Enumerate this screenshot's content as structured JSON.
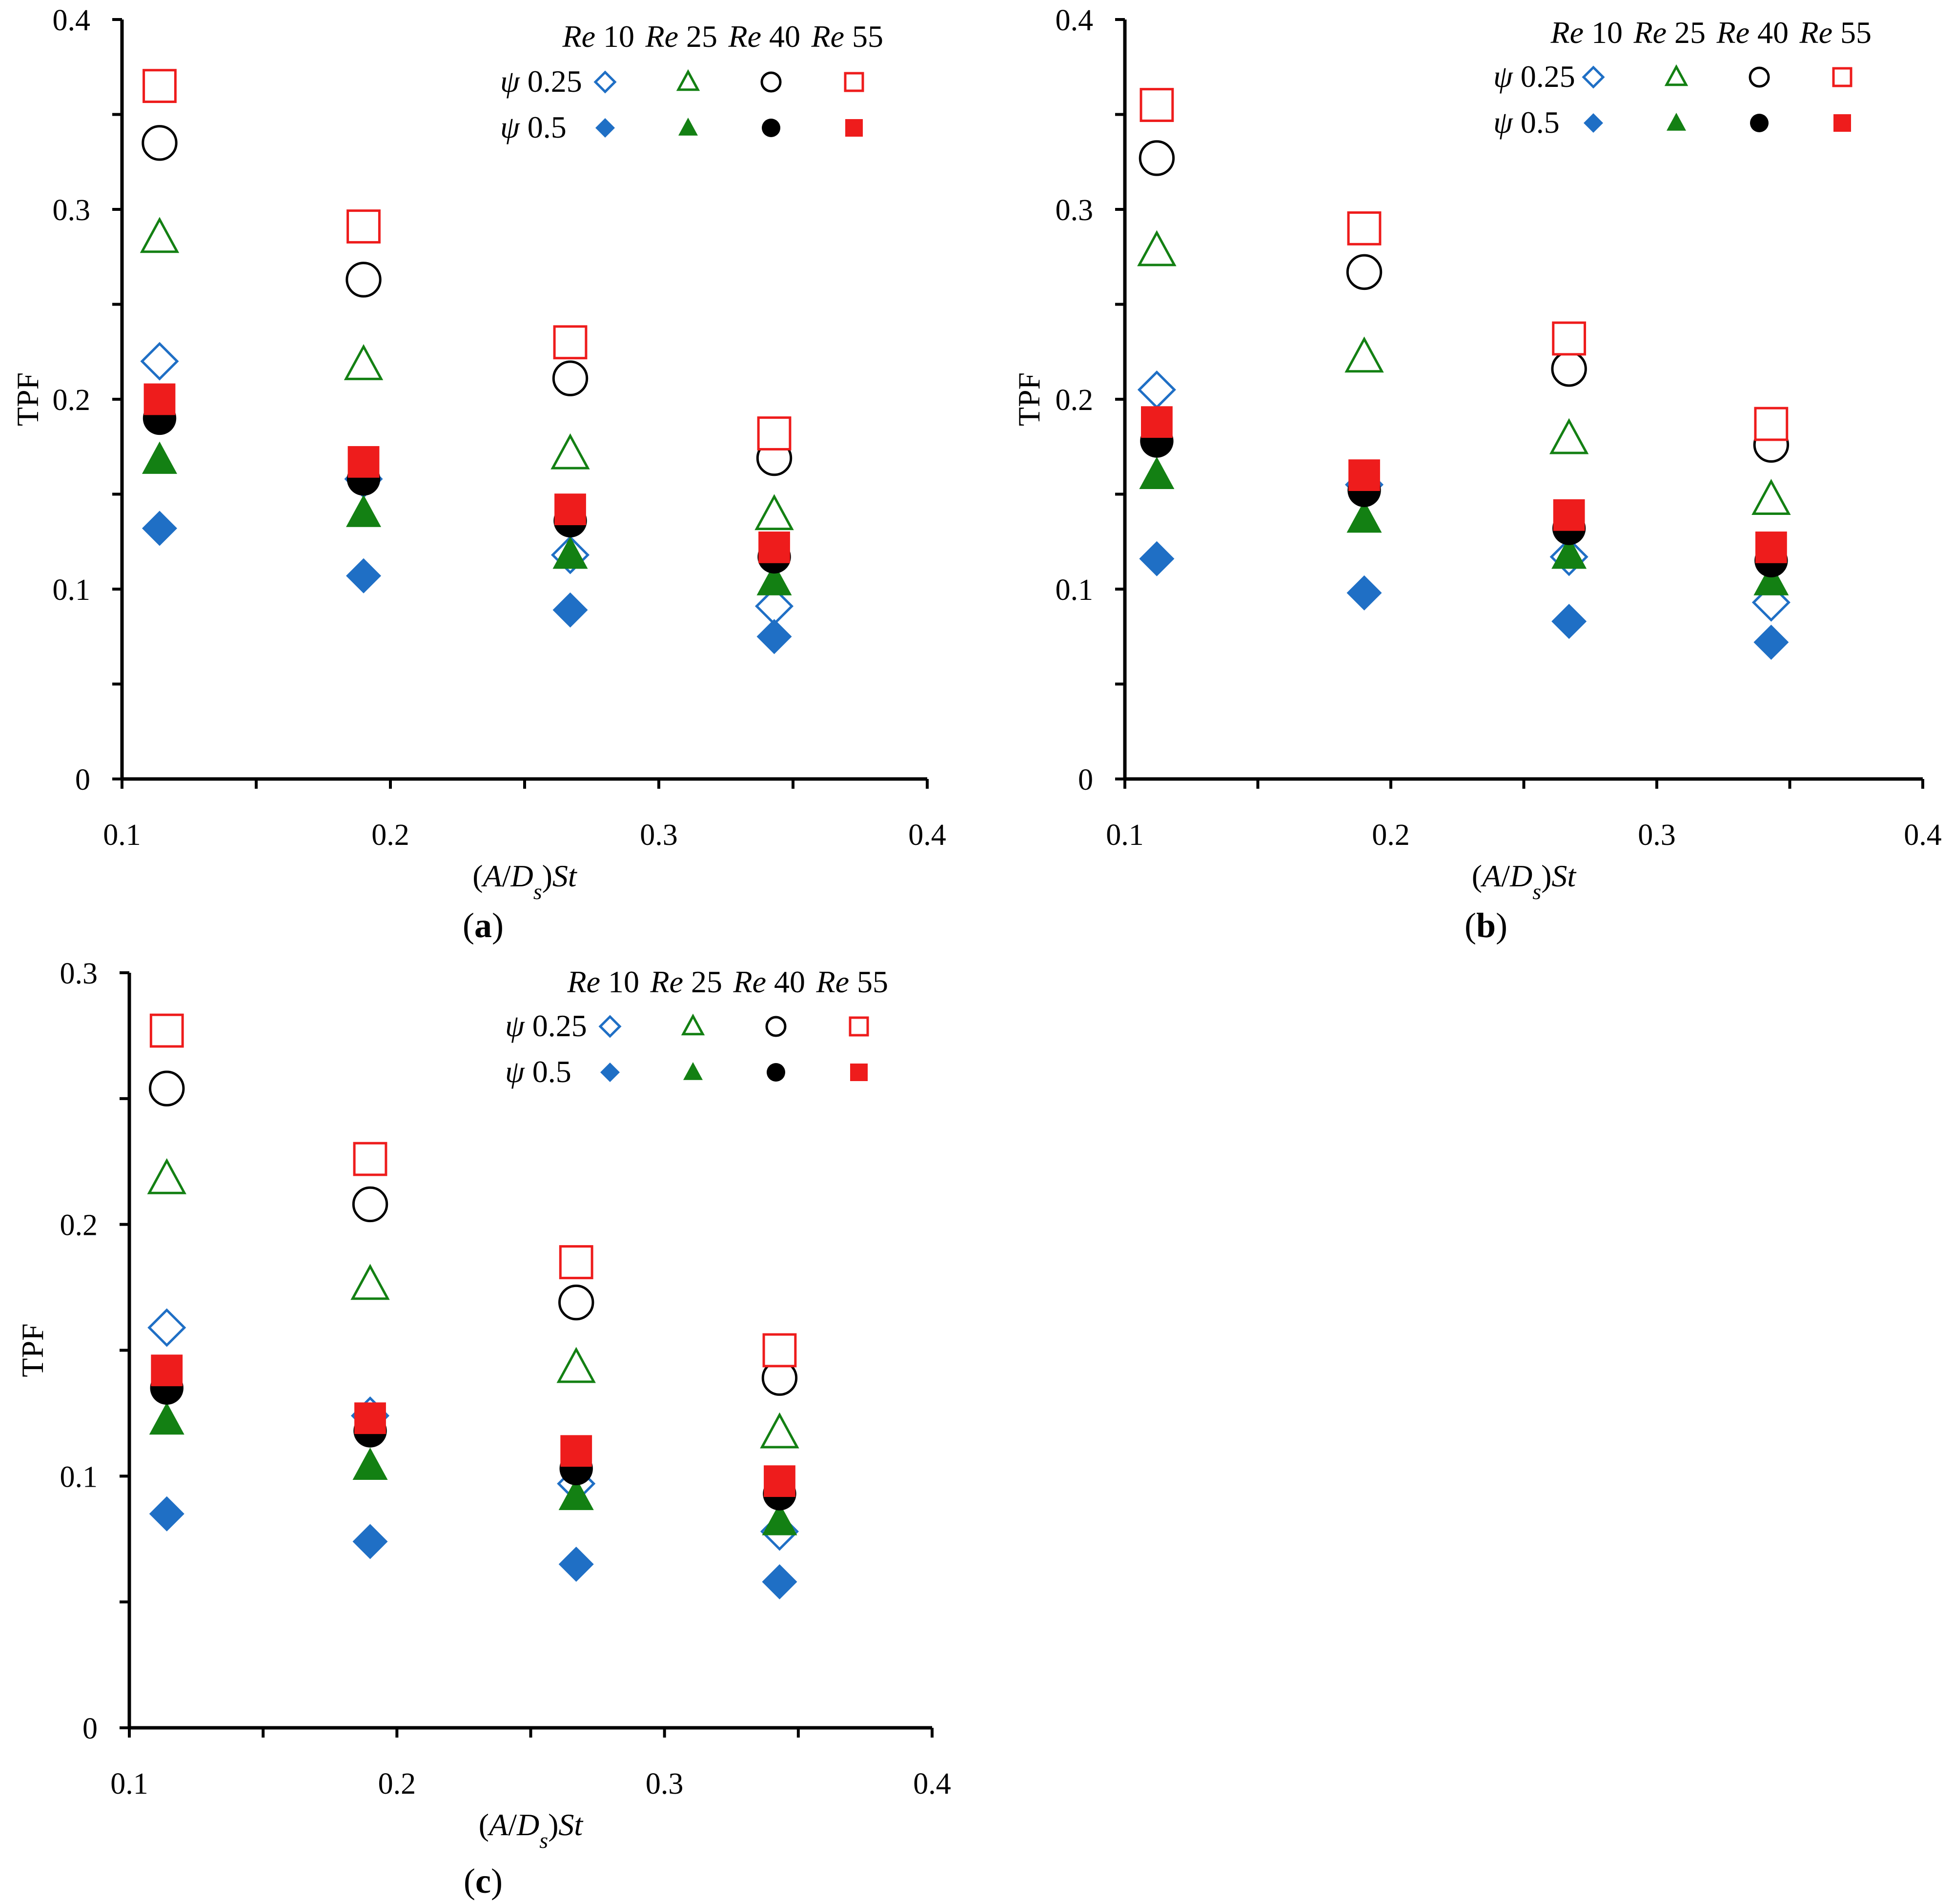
{
  "legend": {
    "re_prefix": "Re",
    "re_values": [
      "10",
      "25",
      "40",
      "55"
    ],
    "psi_symbol": "ψ",
    "psi_values": [
      "0.25",
      "0.5"
    ]
  },
  "colors": {
    "re10": "#1f6fc5",
    "re25": "#138013",
    "re40": "#000000",
    "re55": "#ee1c1c"
  },
  "chart_data": [
    {
      "type": "scatter",
      "panel_label": "a",
      "title": "",
      "xlabel": "(A/Ds)St",
      "ylabel": "TPF",
      "xlim": [
        0.1,
        0.4
      ],
      "ylim": [
        0,
        0.4
      ],
      "xticks": [
        "0.1",
        "0.2",
        "0.3",
        "0.4"
      ],
      "yticks": [
        "0",
        "0.1",
        "0.2",
        "0.3",
        "0.4"
      ],
      "grid": false,
      "legend_position": "top-right",
      "x": [
        0.114,
        0.19,
        0.267,
        0.343
      ],
      "series": [
        {
          "re": "10",
          "psi": "0.25",
          "marker": "diamond",
          "filled": false,
          "values": [
            0.22,
            0.158,
            0.118,
            0.091
          ]
        },
        {
          "re": "25",
          "psi": "0.25",
          "marker": "triangle",
          "filled": false,
          "values": [
            0.285,
            0.218,
            0.171,
            0.139
          ]
        },
        {
          "re": "40",
          "psi": "0.25",
          "marker": "circle",
          "filled": false,
          "values": [
            0.335,
            0.263,
            0.211,
            0.169
          ]
        },
        {
          "re": "55",
          "psi": "0.25",
          "marker": "square",
          "filled": false,
          "values": [
            0.365,
            0.291,
            0.23,
            0.182
          ]
        },
        {
          "re": "10",
          "psi": "0.5",
          "marker": "diamond",
          "filled": true,
          "values": [
            0.132,
            0.107,
            0.089,
            0.075
          ]
        },
        {
          "re": "25",
          "psi": "0.5",
          "marker": "triangle",
          "filled": true,
          "values": [
            0.168,
            0.14,
            0.118,
            0.104
          ]
        },
        {
          "re": "40",
          "psi": "0.5",
          "marker": "circle",
          "filled": true,
          "values": [
            0.19,
            0.158,
            0.136,
            0.117
          ]
        },
        {
          "re": "55",
          "psi": "0.5",
          "marker": "square",
          "filled": true,
          "values": [
            0.2,
            0.167,
            0.142,
            0.122
          ]
        }
      ]
    },
    {
      "type": "scatter",
      "panel_label": "b",
      "title": "",
      "xlabel": "(A/Ds)St",
      "ylabel": "TPF",
      "xlim": [
        0.1,
        0.4
      ],
      "ylim": [
        0,
        0.4
      ],
      "xticks": [
        "0.1",
        "0.2",
        "0.3",
        "0.4"
      ],
      "yticks": [
        "0",
        "0.1",
        "0.2",
        "0.3",
        "0.4"
      ],
      "grid": false,
      "legend_position": "top-right",
      "x": [
        0.112,
        0.19,
        0.267,
        0.343
      ],
      "series": [
        {
          "re": "10",
          "psi": "0.25",
          "marker": "diamond",
          "filled": false,
          "values": [
            0.205,
            0.155,
            0.117,
            0.093
          ]
        },
        {
          "re": "25",
          "psi": "0.25",
          "marker": "triangle",
          "filled": false,
          "values": [
            0.278,
            0.222,
            0.179,
            0.147
          ]
        },
        {
          "re": "40",
          "psi": "0.25",
          "marker": "circle",
          "filled": false,
          "values": [
            0.327,
            0.267,
            0.216,
            0.176
          ]
        },
        {
          "re": "55",
          "psi": "0.25",
          "marker": "square",
          "filled": false,
          "values": [
            0.355,
            0.29,
            0.232,
            0.187
          ]
        },
        {
          "re": "10",
          "psi": "0.5",
          "marker": "diamond",
          "filled": true,
          "values": [
            0.116,
            0.098,
            0.083,
            0.072
          ]
        },
        {
          "re": "25",
          "psi": "0.5",
          "marker": "triangle",
          "filled": true,
          "values": [
            0.16,
            0.137,
            0.118,
            0.104
          ]
        },
        {
          "re": "40",
          "psi": "0.5",
          "marker": "circle",
          "filled": true,
          "values": [
            0.178,
            0.152,
            0.132,
            0.115
          ]
        },
        {
          "re": "55",
          "psi": "0.5",
          "marker": "square",
          "filled": true,
          "values": [
            0.188,
            0.16,
            0.139,
            0.122
          ]
        }
      ]
    },
    {
      "type": "scatter",
      "panel_label": "c",
      "title": "",
      "xlabel": "(A/Ds)St",
      "ylabel": "TPF",
      "xlim": [
        0.1,
        0.4
      ],
      "ylim": [
        0,
        0.3
      ],
      "xticks": [
        "0.1",
        "0.2",
        "0.3",
        "0.4"
      ],
      "yticks": [
        "0",
        "0.1",
        "0.2",
        "0.3"
      ],
      "grid": false,
      "legend_position": "top-right",
      "x": [
        0.114,
        0.19,
        0.267,
        0.343
      ],
      "series": [
        {
          "re": "10",
          "psi": "0.25",
          "marker": "diamond",
          "filled": false,
          "values": [
            0.159,
            0.124,
            0.097,
            0.078
          ]
        },
        {
          "re": "25",
          "psi": "0.25",
          "marker": "triangle",
          "filled": false,
          "values": [
            0.218,
            0.176,
            0.143,
            0.117
          ]
        },
        {
          "re": "40",
          "psi": "0.25",
          "marker": "circle",
          "filled": false,
          "values": [
            0.254,
            0.208,
            0.169,
            0.139
          ]
        },
        {
          "re": "55",
          "psi": "0.25",
          "marker": "square",
          "filled": false,
          "values": [
            0.277,
            0.226,
            0.185,
            0.15
          ]
        },
        {
          "re": "10",
          "psi": "0.5",
          "marker": "diamond",
          "filled": true,
          "values": [
            0.085,
            0.074,
            0.065,
            0.058
          ]
        },
        {
          "re": "25",
          "psi": "0.5",
          "marker": "triangle",
          "filled": true,
          "values": [
            0.122,
            0.104,
            0.092,
            0.082
          ]
        },
        {
          "re": "40",
          "psi": "0.5",
          "marker": "circle",
          "filled": true,
          "values": [
            0.135,
            0.118,
            0.103,
            0.093
          ]
        },
        {
          "re": "55",
          "psi": "0.5",
          "marker": "square",
          "filled": true,
          "values": [
            0.142,
            0.123,
            0.11,
            0.098
          ]
        }
      ]
    }
  ]
}
